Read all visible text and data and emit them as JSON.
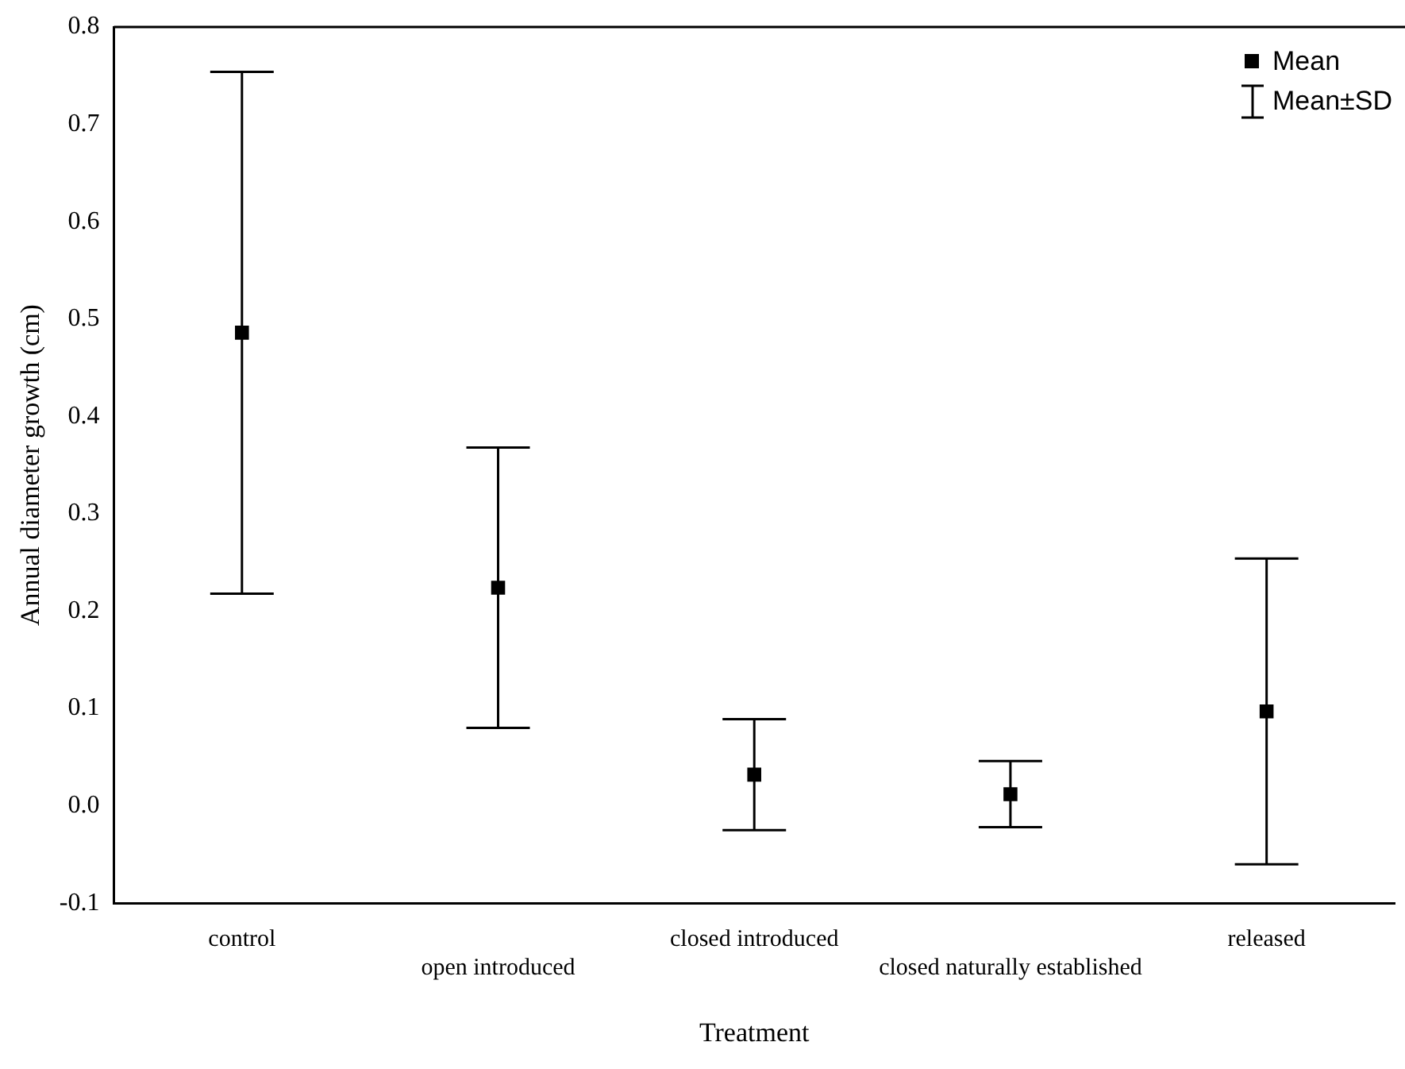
{
  "chart_data": {
    "type": "scatter",
    "xlabel": "Treatment",
    "ylabel": "Annual diameter growth (cm)",
    "categories": [
      "control",
      "open introduced",
      "closed introduced",
      "closed naturally established",
      "released"
    ],
    "series": [
      {
        "name": "Mean",
        "color": "#000000",
        "values": [
          0.486,
          0.224,
          0.032,
          0.012,
          0.097
        ],
        "errors": [
          0.268,
          0.144,
          0.057,
          0.034,
          0.157
        ]
      }
    ],
    "ylim": [
      -0.1,
      0.8
    ],
    "yticks": [
      -0.1,
      {
        "value": 0,
        "label": "0.0"
      },
      0.1,
      0.2,
      0.3,
      0.4,
      0.5,
      0.6,
      0.7,
      0.8
    ],
    "marker": "square",
    "grid": false,
    "legend": "top right",
    "annotations": [
      "Mean±SD"
    ]
  }
}
